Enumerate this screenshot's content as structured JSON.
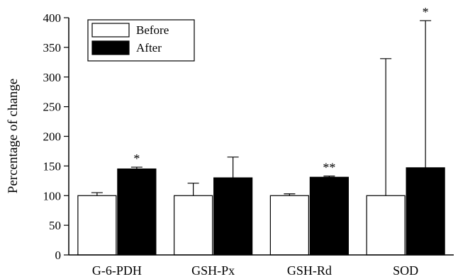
{
  "chart_data": {
    "type": "bar",
    "title": "",
    "xlabel": "",
    "ylabel": "Percentage of change",
    "ylim": [
      0,
      400
    ],
    "yticks": [
      0,
      50,
      100,
      150,
      200,
      250,
      300,
      350,
      400
    ],
    "categories": [
      "G-6-PDH",
      "GSH-Px",
      "GSH-Rd",
      "SOD"
    ],
    "series": [
      {
        "name": "Before",
        "color": "#ffffff",
        "values": [
          100,
          100,
          100,
          100
        ],
        "error_upper": [
          105,
          121,
          103,
          331
        ]
      },
      {
        "name": "After",
        "color": "#000000",
        "values": [
          145,
          130,
          131,
          147
        ],
        "error_upper": [
          148,
          165,
          133,
          395
        ]
      }
    ],
    "annotations": [
      {
        "category": "G-6-PDH",
        "series": "After",
        "text": "*"
      },
      {
        "category": "GSH-Rd",
        "series": "After",
        "text": "**"
      },
      {
        "category": "SOD",
        "series": "After",
        "text": "*"
      }
    ],
    "grid": false,
    "legend_position": "top-left"
  }
}
